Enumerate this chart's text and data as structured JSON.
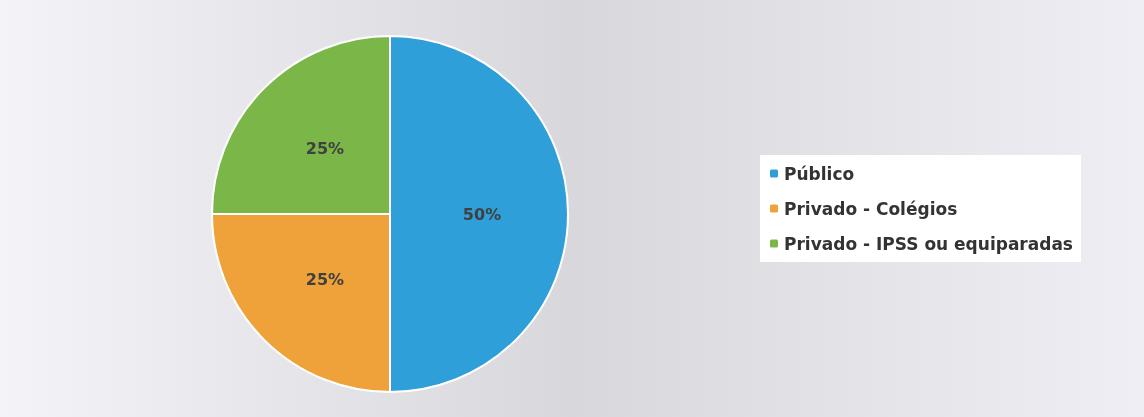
{
  "chart_data": {
    "type": "pie",
    "categories": [
      "Público",
      "Privado - Colégios",
      "Privado - IPSS ou equiparadas"
    ],
    "values": [
      50,
      25,
      25
    ],
    "value_labels": [
      "50%",
      "25%",
      "25%"
    ],
    "colors": [
      "#2e9fd8",
      "#f0a23a",
      "#7ab648"
    ],
    "legend": "right"
  }
}
